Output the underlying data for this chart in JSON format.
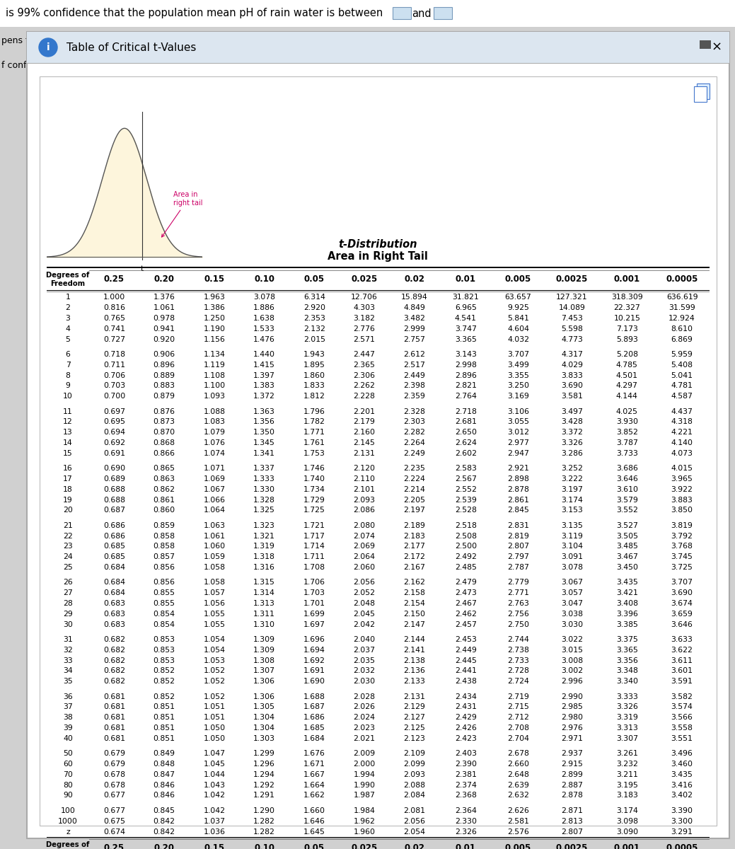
{
  "title_top": "is 99% confidence that the population mean pH of rain water is between",
  "window_title": "Table of Critical t-Values",
  "table_title_top": "t-Distribution\nArea in Right Tail",
  "table_title_bottom": "t-Distribution\nArea in Right Tail",
  "col_headers": [
    "0.25",
    "0.20",
    "0.15",
    "0.10",
    "0.05",
    "0.025",
    "0.02",
    "0.01",
    "0.005",
    "0.0025",
    "0.001",
    "0.0005"
  ],
  "rows": [
    [
      "1",
      "1.000",
      "1.376",
      "1.963",
      "3.078",
      "6.314",
      "12.706",
      "15.894",
      "31.821",
      "63.657",
      "127.321",
      "318.309",
      "636.619"
    ],
    [
      "2",
      "0.816",
      "1.061",
      "1.386",
      "1.886",
      "2.920",
      "4.303",
      "4.849",
      "6.965",
      "9.925",
      "14.089",
      "22.327",
      "31.599"
    ],
    [
      "3",
      "0.765",
      "0.978",
      "1.250",
      "1.638",
      "2.353",
      "3.182",
      "3.482",
      "4.541",
      "5.841",
      "7.453",
      "10.215",
      "12.924"
    ],
    [
      "4",
      "0.741",
      "0.941",
      "1.190",
      "1.533",
      "2.132",
      "2.776",
      "2.999",
      "3.747",
      "4.604",
      "5.598",
      "7.173",
      "8.610"
    ],
    [
      "5",
      "0.727",
      "0.920",
      "1.156",
      "1.476",
      "2.015",
      "2.571",
      "2.757",
      "3.365",
      "4.032",
      "4.773",
      "5.893",
      "6.869"
    ],
    [
      "6",
      "0.718",
      "0.906",
      "1.134",
      "1.440",
      "1.943",
      "2.447",
      "2.612",
      "3.143",
      "3.707",
      "4.317",
      "5.208",
      "5.959"
    ],
    [
      "7",
      "0.711",
      "0.896",
      "1.119",
      "1.415",
      "1.895",
      "2.365",
      "2.517",
      "2.998",
      "3.499",
      "4.029",
      "4.785",
      "5.408"
    ],
    [
      "8",
      "0.706",
      "0.889",
      "1.108",
      "1.397",
      "1.860",
      "2.306",
      "2.449",
      "2.896",
      "3.355",
      "3.833",
      "4.501",
      "5.041"
    ],
    [
      "9",
      "0.703",
      "0.883",
      "1.100",
      "1.383",
      "1.833",
      "2.262",
      "2.398",
      "2.821",
      "3.250",
      "3.690",
      "4.297",
      "4.781"
    ],
    [
      "10",
      "0.700",
      "0.879",
      "1.093",
      "1.372",
      "1.812",
      "2.228",
      "2.359",
      "2.764",
      "3.169",
      "3.581",
      "4.144",
      "4.587"
    ],
    [
      "11",
      "0.697",
      "0.876",
      "1.088",
      "1.363",
      "1.796",
      "2.201",
      "2.328",
      "2.718",
      "3.106",
      "3.497",
      "4.025",
      "4.437"
    ],
    [
      "12",
      "0.695",
      "0.873",
      "1.083",
      "1.356",
      "1.782",
      "2.179",
      "2.303",
      "2.681",
      "3.055",
      "3.428",
      "3.930",
      "4.318"
    ],
    [
      "13",
      "0.694",
      "0.870",
      "1.079",
      "1.350",
      "1.771",
      "2.160",
      "2.282",
      "2.650",
      "3.012",
      "3.372",
      "3.852",
      "4.221"
    ],
    [
      "14",
      "0.692",
      "0.868",
      "1.076",
      "1.345",
      "1.761",
      "2.145",
      "2.264",
      "2.624",
      "2.977",
      "3.326",
      "3.787",
      "4.140"
    ],
    [
      "15",
      "0.691",
      "0.866",
      "1.074",
      "1.341",
      "1.753",
      "2.131",
      "2.249",
      "2.602",
      "2.947",
      "3.286",
      "3.733",
      "4.073"
    ],
    [
      "16",
      "0.690",
      "0.865",
      "1.071",
      "1.337",
      "1.746",
      "2.120",
      "2.235",
      "2.583",
      "2.921",
      "3.252",
      "3.686",
      "4.015"
    ],
    [
      "17",
      "0.689",
      "0.863",
      "1.069",
      "1.333",
      "1.740",
      "2.110",
      "2.224",
      "2.567",
      "2.898",
      "3.222",
      "3.646",
      "3.965"
    ],
    [
      "18",
      "0.688",
      "0.862",
      "1.067",
      "1.330",
      "1.734",
      "2.101",
      "2.214",
      "2.552",
      "2.878",
      "3.197",
      "3.610",
      "3.922"
    ],
    [
      "19",
      "0.688",
      "0.861",
      "1.066",
      "1.328",
      "1.729",
      "2.093",
      "2.205",
      "2.539",
      "2.861",
      "3.174",
      "3.579",
      "3.883"
    ],
    [
      "20",
      "0.687",
      "0.860",
      "1.064",
      "1.325",
      "1.725",
      "2.086",
      "2.197",
      "2.528",
      "2.845",
      "3.153",
      "3.552",
      "3.850"
    ],
    [
      "21",
      "0.686",
      "0.859",
      "1.063",
      "1.323",
      "1.721",
      "2.080",
      "2.189",
      "2.518",
      "2.831",
      "3.135",
      "3.527",
      "3.819"
    ],
    [
      "22",
      "0.686",
      "0.858",
      "1.061",
      "1.321",
      "1.717",
      "2.074",
      "2.183",
      "2.508",
      "2.819",
      "3.119",
      "3.505",
      "3.792"
    ],
    [
      "23",
      "0.685",
      "0.858",
      "1.060",
      "1.319",
      "1.714",
      "2.069",
      "2.177",
      "2.500",
      "2.807",
      "3.104",
      "3.485",
      "3.768"
    ],
    [
      "24",
      "0.685",
      "0.857",
      "1.059",
      "1.318",
      "1.711",
      "2.064",
      "2.172",
      "2.492",
      "2.797",
      "3.091",
      "3.467",
      "3.745"
    ],
    [
      "25",
      "0.684",
      "0.856",
      "1.058",
      "1.316",
      "1.708",
      "2.060",
      "2.167",
      "2.485",
      "2.787",
      "3.078",
      "3.450",
      "3.725"
    ],
    [
      "26",
      "0.684",
      "0.856",
      "1.058",
      "1.315",
      "1.706",
      "2.056",
      "2.162",
      "2.479",
      "2.779",
      "3.067",
      "3.435",
      "3.707"
    ],
    [
      "27",
      "0.684",
      "0.855",
      "1.057",
      "1.314",
      "1.703",
      "2.052",
      "2.158",
      "2.473",
      "2.771",
      "3.057",
      "3.421",
      "3.690"
    ],
    [
      "28",
      "0.683",
      "0.855",
      "1.056",
      "1.313",
      "1.701",
      "2.048",
      "2.154",
      "2.467",
      "2.763",
      "3.047",
      "3.408",
      "3.674"
    ],
    [
      "29",
      "0.683",
      "0.854",
      "1.055",
      "1.311",
      "1.699",
      "2.045",
      "2.150",
      "2.462",
      "2.756",
      "3.038",
      "3.396",
      "3.659"
    ],
    [
      "30",
      "0.683",
      "0.854",
      "1.055",
      "1.310",
      "1.697",
      "2.042",
      "2.147",
      "2.457",
      "2.750",
      "3.030",
      "3.385",
      "3.646"
    ],
    [
      "31",
      "0.682",
      "0.853",
      "1.054",
      "1.309",
      "1.696",
      "2.040",
      "2.144",
      "2.453",
      "2.744",
      "3.022",
      "3.375",
      "3.633"
    ],
    [
      "32",
      "0.682",
      "0.853",
      "1.054",
      "1.309",
      "1.694",
      "2.037",
      "2.141",
      "2.449",
      "2.738",
      "3.015",
      "3.365",
      "3.622"
    ],
    [
      "33",
      "0.682",
      "0.853",
      "1.053",
      "1.308",
      "1.692",
      "2.035",
      "2.138",
      "2.445",
      "2.733",
      "3.008",
      "3.356",
      "3.611"
    ],
    [
      "34",
      "0.682",
      "0.852",
      "1.052",
      "1.307",
      "1.691",
      "2.032",
      "2.136",
      "2.441",
      "2.728",
      "3.002",
      "3.348",
      "3.601"
    ],
    [
      "35",
      "0.682",
      "0.852",
      "1.052",
      "1.306",
      "1.690",
      "2.030",
      "2.133",
      "2.438",
      "2.724",
      "2.996",
      "3.340",
      "3.591"
    ],
    [
      "36",
      "0.681",
      "0.852",
      "1.052",
      "1.306",
      "1.688",
      "2.028",
      "2.131",
      "2.434",
      "2.719",
      "2.990",
      "3.333",
      "3.582"
    ],
    [
      "37",
      "0.681",
      "0.851",
      "1.051",
      "1.305",
      "1.687",
      "2.026",
      "2.129",
      "2.431",
      "2.715",
      "2.985",
      "3.326",
      "3.574"
    ],
    [
      "38",
      "0.681",
      "0.851",
      "1.051",
      "1.304",
      "1.686",
      "2.024",
      "2.127",
      "2.429",
      "2.712",
      "2.980",
      "3.319",
      "3.566"
    ],
    [
      "39",
      "0.681",
      "0.851",
      "1.050",
      "1.304",
      "1.685",
      "2.023",
      "2.125",
      "2.426",
      "2.708",
      "2.976",
      "3.313",
      "3.558"
    ],
    [
      "40",
      "0.681",
      "0.851",
      "1.050",
      "1.303",
      "1.684",
      "2.021",
      "2.123",
      "2.423",
      "2.704",
      "2.971",
      "3.307",
      "3.551"
    ],
    [
      "50",
      "0.679",
      "0.849",
      "1.047",
      "1.299",
      "1.676",
      "2.009",
      "2.109",
      "2.403",
      "2.678",
      "2.937",
      "3.261",
      "3.496"
    ],
    [
      "60",
      "0.679",
      "0.848",
      "1.045",
      "1.296",
      "1.671",
      "2.000",
      "2.099",
      "2.390",
      "2.660",
      "2.915",
      "3.232",
      "3.460"
    ],
    [
      "70",
      "0.678",
      "0.847",
      "1.044",
      "1.294",
      "1.667",
      "1.994",
      "2.093",
      "2.381",
      "2.648",
      "2.899",
      "3.211",
      "3.435"
    ],
    [
      "80",
      "0.678",
      "0.846",
      "1.043",
      "1.292",
      "1.664",
      "1.990",
      "2.088",
      "2.374",
      "2.639",
      "2.887",
      "3.195",
      "3.416"
    ],
    [
      "90",
      "0.677",
      "0.846",
      "1.042",
      "1.291",
      "1.662",
      "1.987",
      "2.084",
      "2.368",
      "2.632",
      "2.878",
      "3.183",
      "3.402"
    ],
    [
      "100",
      "0.677",
      "0.845",
      "1.042",
      "1.290",
      "1.660",
      "1.984",
      "2.081",
      "2.364",
      "2.626",
      "2.871",
      "3.174",
      "3.390"
    ],
    [
      "1000",
      "0.675",
      "0.842",
      "1.037",
      "1.282",
      "1.646",
      "1.962",
      "2.056",
      "2.330",
      "2.581",
      "2.813",
      "3.098",
      "3.300"
    ],
    [
      "z",
      "0.674",
      "0.842",
      "1.036",
      "1.282",
      "1.645",
      "1.960",
      "2.054",
      "2.326",
      "2.576",
      "2.807",
      "3.090",
      "3.291"
    ]
  ],
  "curve_fill_color": "#fdf5dc",
  "curve_line_color": "#555555",
  "annotation_color": "#cc0066",
  "header_font_size": 8.5,
  "data_font_size": 7.8,
  "small_header_font_size": 7.5,
  "outer_bg": "#d0d0d0",
  "dialog_bg": "#dce6f0",
  "inner_bg": "#ffffff",
  "titlebar_bg": "#dce6f0"
}
